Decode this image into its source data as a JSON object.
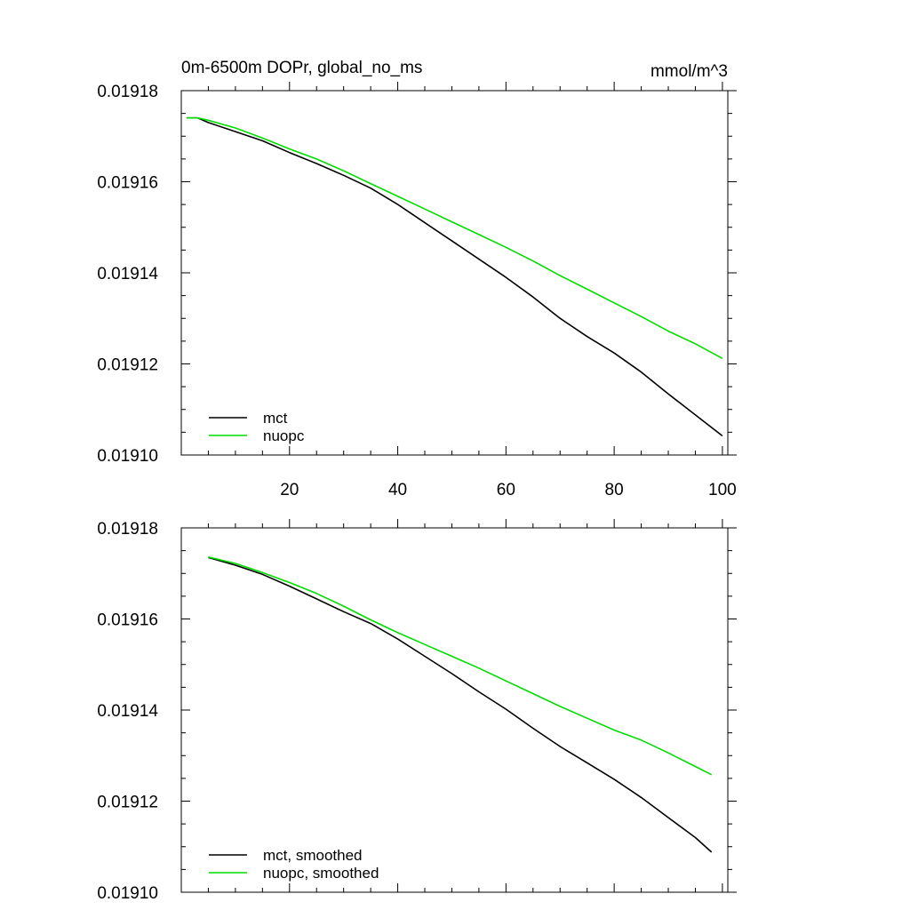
{
  "chart_data": [
    {
      "type": "line",
      "title_left": "0m-6500m DOPr, global_no_ms",
      "title_right": "mmol/m^3",
      "xlim": [
        0,
        101
      ],
      "ylim": [
        0.0191,
        0.01918
      ],
      "xticks": [
        20,
        40,
        60,
        80,
        100
      ],
      "xtick_labels": [
        "20",
        "40",
        "60",
        "80",
        "100"
      ],
      "yticks": [
        0.0191,
        0.01912,
        0.01914,
        0.01916,
        0.01918
      ],
      "ytick_labels": [
        "0.01910",
        "0.01912",
        "0.01914",
        "0.01916",
        "0.01918"
      ],
      "legend_position": "bottom-left",
      "series": [
        {
          "name": "mct",
          "color": "#000000",
          "x": [
            1,
            3,
            5,
            10,
            15,
            20,
            25,
            30,
            35,
            40,
            45,
            50,
            55,
            60,
            65,
            70,
            75,
            80,
            85,
            90,
            95,
            100
          ],
          "y": [
            0.019174,
            0.019174,
            0.019173,
            0.019171,
            0.019169,
            0.0191664,
            0.019164,
            0.0191614,
            0.0191586,
            0.019155,
            0.019151,
            0.019147,
            0.019143,
            0.019139,
            0.0191347,
            0.01913,
            0.019126,
            0.0191224,
            0.0191182,
            0.0191134,
            0.0191088,
            0.0191042
          ]
        },
        {
          "name": "nuopc",
          "color": "#00dd00",
          "x": [
            1,
            3,
            5,
            10,
            15,
            20,
            25,
            30,
            35,
            40,
            45,
            50,
            55,
            60,
            65,
            70,
            75,
            80,
            85,
            90,
            95,
            100
          ],
          "y": [
            0.019174,
            0.019174,
            0.0191735,
            0.0191718,
            0.0191696,
            0.0191672,
            0.019165,
            0.0191624,
            0.0191596,
            0.0191568,
            0.019154,
            0.0191512,
            0.0191484,
            0.0191456,
            0.0191426,
            0.0191394,
            0.0191364,
            0.0191334,
            0.0191304,
            0.0191272,
            0.0191244,
            0.0191212
          ]
        }
      ]
    },
    {
      "type": "line",
      "xlim": [
        0,
        101
      ],
      "ylim": [
        0.0191,
        0.01918
      ],
      "xticks": [
        20,
        40,
        60,
        80,
        100
      ],
      "yticks": [
        0.0191,
        0.01912,
        0.01914,
        0.01916,
        0.01918
      ],
      "ytick_labels": [
        "0.01910",
        "0.01912",
        "0.01914",
        "0.01916",
        "0.01918"
      ],
      "legend_position": "bottom-left",
      "series": [
        {
          "name": "mct, smoothed",
          "color": "#000000",
          "x": [
            5,
            10,
            15,
            20,
            25,
            30,
            35,
            40,
            45,
            50,
            55,
            60,
            65,
            70,
            75,
            80,
            85,
            90,
            95,
            98
          ],
          "y": [
            0.0191735,
            0.0191718,
            0.0191698,
            0.0191672,
            0.0191644,
            0.0191616,
            0.019159,
            0.0191556,
            0.0191518,
            0.019148,
            0.019144,
            0.0191402,
            0.019136,
            0.019132,
            0.0191284,
            0.0191248,
            0.0191208,
            0.0191164,
            0.019112,
            0.0191088
          ]
        },
        {
          "name": "nuopc, smoothed",
          "color": "#00dd00",
          "x": [
            5,
            10,
            15,
            20,
            25,
            30,
            35,
            40,
            45,
            50,
            55,
            60,
            65,
            70,
            75,
            80,
            85,
            90,
            95,
            98
          ],
          "y": [
            0.0191736,
            0.0191722,
            0.0191702,
            0.019168,
            0.0191656,
            0.0191628,
            0.0191598,
            0.019157,
            0.0191544,
            0.0191518,
            0.0191492,
            0.0191464,
            0.0191436,
            0.0191408,
            0.0191382,
            0.0191356,
            0.0191334,
            0.0191306,
            0.0191276,
            0.0191258
          ]
        }
      ]
    }
  ]
}
